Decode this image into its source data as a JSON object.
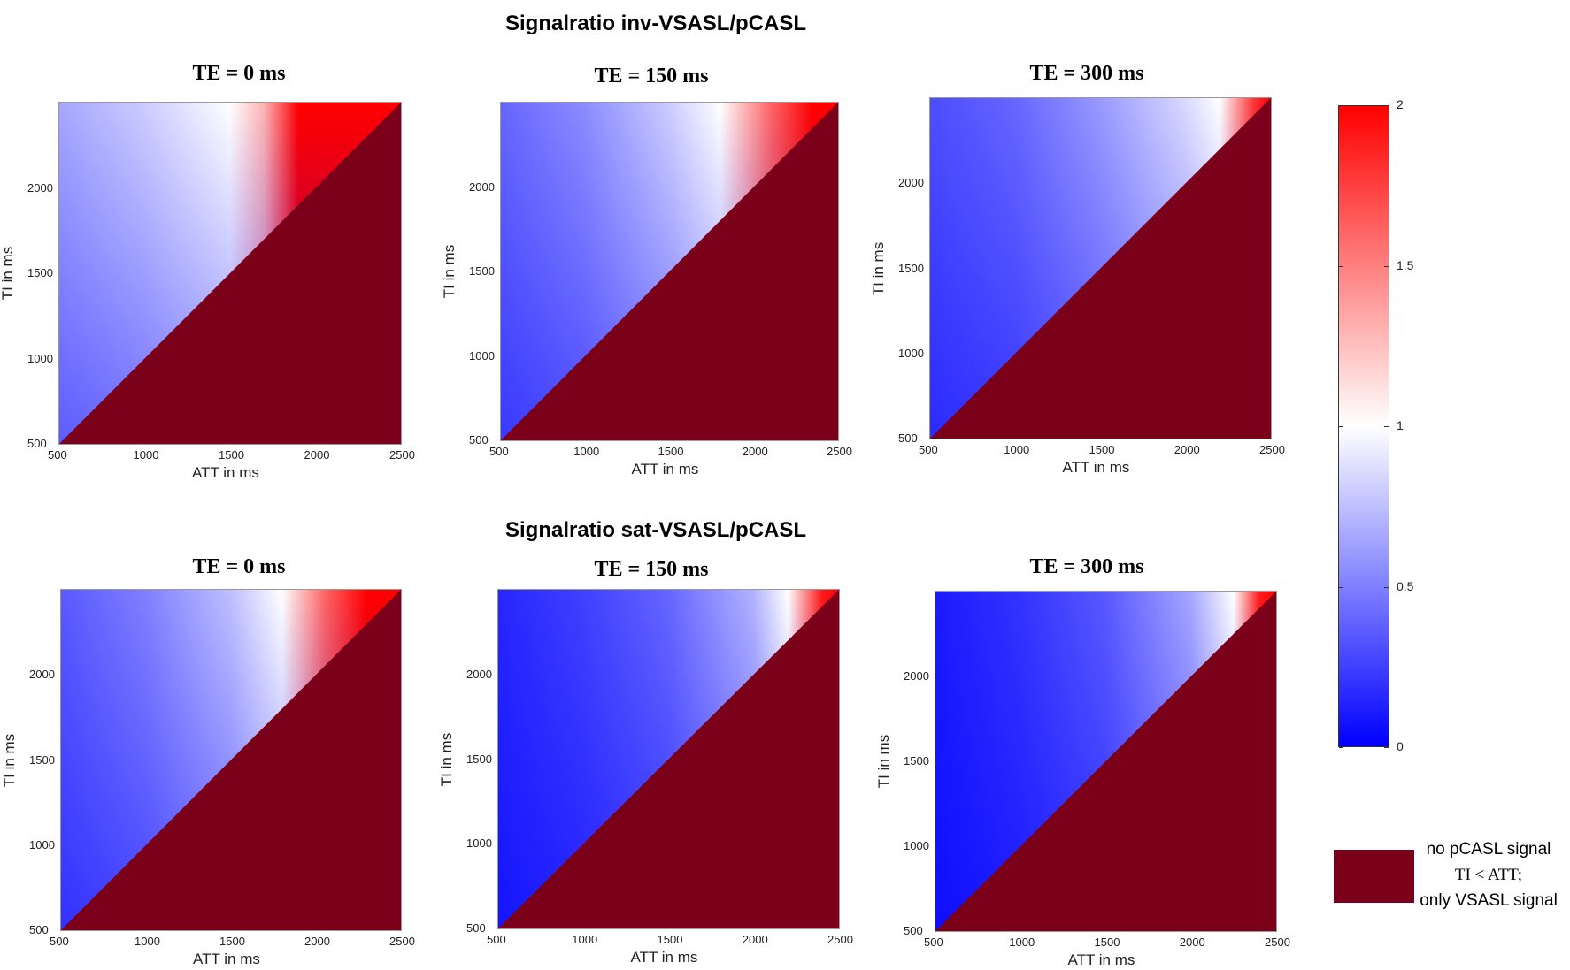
{
  "section_titles": [
    "Signalratio inv-VSASL/pCASL",
    "Signalratio sat-VSASL/pCASL"
  ],
  "colors": {
    "low": "#0000ff",
    "mid": "#ffffff",
    "high": "#ff0000",
    "no_pcasl": "#7b0019"
  },
  "colorbar": {
    "min": 0,
    "max": 2,
    "ticks": [
      "0",
      "0.5",
      "1",
      "1.5",
      "2"
    ]
  },
  "legend": {
    "line1": "no pCASL signal",
    "line2": "TI < ATT;",
    "line3": "only VSASL signal"
  },
  "chart_data": [
    {
      "type": "heatmap",
      "title": "TE = 0 ms",
      "group": "Signalratio inv-VSASL/pCASL",
      "xlabel": "ATT in ms",
      "ylabel": "TI in ms",
      "xlim": [
        500,
        2500
      ],
      "ylim": [
        500,
        2500
      ],
      "xticks": [
        "500",
        "1000",
        "1500",
        "2000",
        "2500"
      ],
      "yticks": [
        "500",
        "1000",
        "1500",
        "2000"
      ],
      "z_at_ti_2500": [
        {
          "att": 500,
          "z": 0.65
        },
        {
          "att": 1000,
          "z": 0.8
        },
        {
          "att": 1500,
          "z": 1.0
        },
        {
          "att": 1700,
          "z": 1.3
        },
        {
          "att": 1900,
          "z": 2.0
        },
        {
          "att": 2500,
          "z": 2.0
        }
      ],
      "z_at_ti_500": 0.0
    },
    {
      "type": "heatmap",
      "title": "TE = 150 ms",
      "group": "Signalratio inv-VSASL/pCASL",
      "xlabel": "ATT in ms",
      "ylabel": "TI in ms",
      "xlim": [
        500,
        2500
      ],
      "ylim": [
        500,
        2500
      ],
      "xticks": [
        "500",
        "1000",
        "1500",
        "2000",
        "2500"
      ],
      "yticks": [
        "500",
        "1000",
        "1500",
        "2000"
      ],
      "z_at_ti_2500": [
        {
          "att": 500,
          "z": 0.4
        },
        {
          "att": 1000,
          "z": 0.55
        },
        {
          "att": 1500,
          "z": 0.8
        },
        {
          "att": 1800,
          "z": 1.0
        },
        {
          "att": 2100,
          "z": 1.6
        },
        {
          "att": 2350,
          "z": 2.0
        },
        {
          "att": 2500,
          "z": 2.0
        }
      ],
      "z_at_ti_500": 0.0
    },
    {
      "type": "heatmap",
      "title": "TE = 300 ms",
      "group": "Signalratio inv-VSASL/pCASL",
      "xlabel": "ATT in ms",
      "ylabel": "TI in ms",
      "xlim": [
        500,
        2500
      ],
      "ylim": [
        500,
        2500
      ],
      "xticks": [
        "500",
        "1000",
        "1500",
        "2000",
        "2500"
      ],
      "yticks": [
        "500",
        "1000",
        "1500",
        "2000"
      ],
      "z_at_ti_2500": [
        {
          "att": 500,
          "z": 0.3
        },
        {
          "att": 1000,
          "z": 0.4
        },
        {
          "att": 1500,
          "z": 0.6
        },
        {
          "att": 2000,
          "z": 0.85
        },
        {
          "att": 2200,
          "z": 1.0
        },
        {
          "att": 2400,
          "z": 1.8
        },
        {
          "att": 2500,
          "z": 2.0
        }
      ],
      "z_at_ti_500": 0.0
    },
    {
      "type": "heatmap",
      "title": "TE = 0 ms",
      "group": "Signalratio sat-VSASL/pCASL",
      "xlabel": "ATT in ms",
      "ylabel": "TI in ms",
      "xlim": [
        500,
        2500
      ],
      "ylim": [
        500,
        2500
      ],
      "xticks": [
        "500",
        "1000",
        "1500",
        "2000",
        "2500"
      ],
      "yticks": [
        "500",
        "1000",
        "1500",
        "2000"
      ],
      "z_at_ti_2500": [
        {
          "att": 500,
          "z": 0.35
        },
        {
          "att": 1000,
          "z": 0.5
        },
        {
          "att": 1500,
          "z": 0.75
        },
        {
          "att": 1800,
          "z": 1.0
        },
        {
          "att": 2050,
          "z": 1.6
        },
        {
          "att": 2300,
          "z": 2.0
        },
        {
          "att": 2500,
          "z": 2.0
        }
      ],
      "z_at_ti_500": 0.0
    },
    {
      "type": "heatmap",
      "title": "TE = 150 ms",
      "group": "Signalratio sat-VSASL/pCASL",
      "xlabel": "ATT in ms",
      "ylabel": "TI in ms",
      "xlim": [
        500,
        2500
      ],
      "ylim": [
        500,
        2500
      ],
      "xticks": [
        "500",
        "1000",
        "1500",
        "2000",
        "2500"
      ],
      "yticks": [
        "500",
        "1000",
        "1500",
        "2000"
      ],
      "z_at_ti_2500": [
        {
          "att": 500,
          "z": 0.15
        },
        {
          "att": 1000,
          "z": 0.25
        },
        {
          "att": 1500,
          "z": 0.4
        },
        {
          "att": 2000,
          "z": 0.7
        },
        {
          "att": 2200,
          "z": 1.0
        },
        {
          "att": 2400,
          "z": 1.9
        },
        {
          "att": 2500,
          "z": 2.0
        }
      ],
      "z_at_ti_500": 0.0
    },
    {
      "type": "heatmap",
      "title": "TE = 300 ms",
      "group": "Signalratio sat-VSASL/pCASL",
      "xlabel": "ATT in ms",
      "ylabel": "TI in ms",
      "xlim": [
        500,
        2500
      ],
      "ylim": [
        500,
        2500
      ],
      "xticks": [
        "500",
        "1000",
        "1500",
        "2000",
        "2500"
      ],
      "yticks": [
        "500",
        "1000",
        "1500",
        "2000"
      ],
      "z_at_ti_2500": [
        {
          "att": 500,
          "z": 0.1
        },
        {
          "att": 1000,
          "z": 0.2
        },
        {
          "att": 1500,
          "z": 0.35
        },
        {
          "att": 2000,
          "z": 0.65
        },
        {
          "att": 2250,
          "z": 1.0
        },
        {
          "att": 2400,
          "z": 1.9
        },
        {
          "att": 2500,
          "z": 2.0
        }
      ],
      "z_at_ti_500": 0.0
    }
  ]
}
